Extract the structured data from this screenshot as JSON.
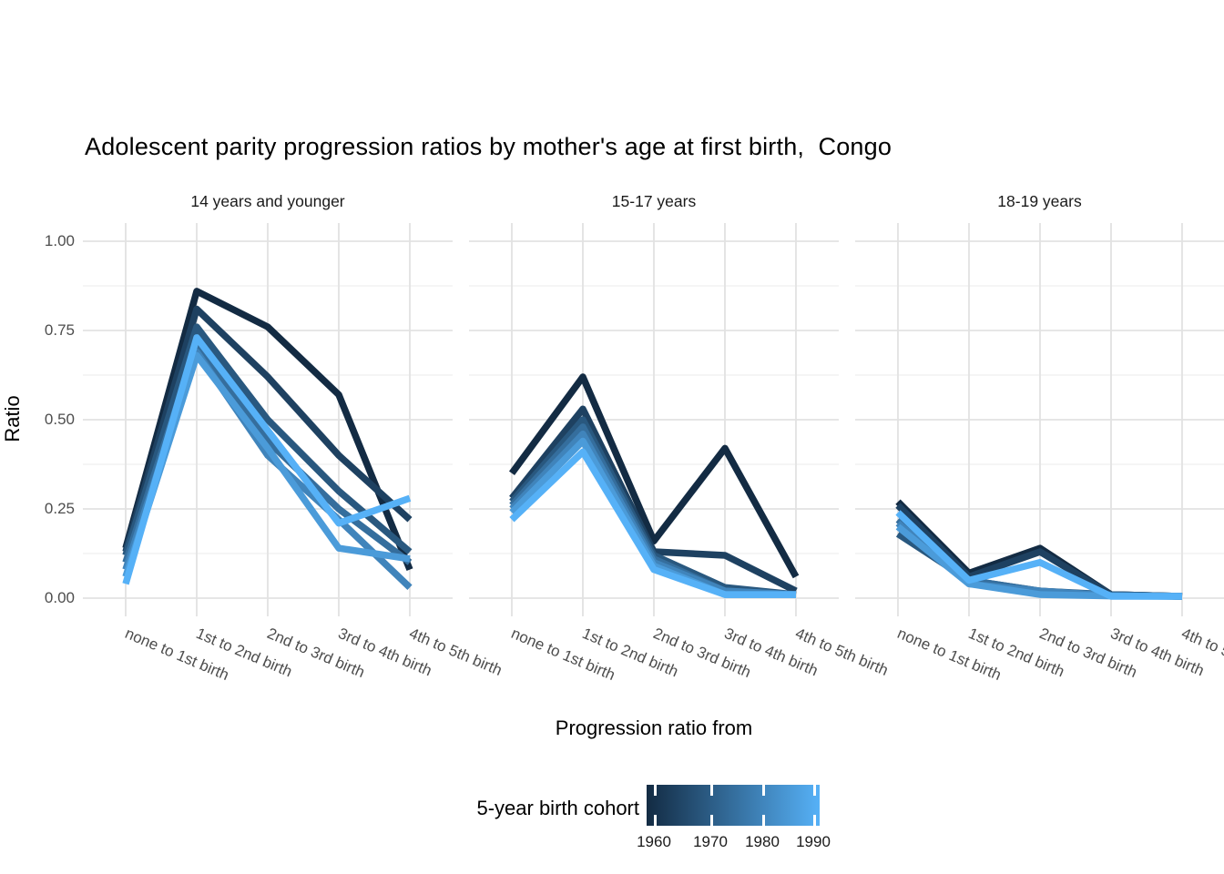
{
  "chart_data": {
    "type": "line",
    "title": "Adolescent parity progression ratios by mother's age at first birth,  Congo",
    "ylabel": "Ratio",
    "xlabel": "Progression ratio from",
    "ylim": [
      0.0,
      1.0
    ],
    "y_ticks": [
      "1.00",
      "0.75",
      "0.50",
      "0.25",
      "0.00"
    ],
    "y_tick_values": [
      1.0,
      0.75,
      0.5,
      0.25,
      0.0
    ],
    "y_minor_values": [
      0.875,
      0.625,
      0.375,
      0.125
    ],
    "grid": "light gray horizontal major+minor lines, vertical major lines at each category, white background (theme_minimal)",
    "categories": [
      "none to 1st birth",
      "1st to 2nd birth",
      "2nd to 3rd birth",
      "3rd to 4th birth",
      "4th to 5th birth"
    ],
    "legend": {
      "title": "5-year birth cohort",
      "position": "bottom",
      "style": "continuous colorbar",
      "ticks": [
        "1960",
        "1970",
        "1980",
        "1990"
      ],
      "gradient_low": "#132B43",
      "gradient_high": "#56B1F7"
    },
    "facets": [
      {
        "label": "14 years and younger",
        "series": [
          {
            "name": "1960",
            "color": "#132B43",
            "values": [
              0.14,
              0.86,
              0.76,
              0.57,
              0.08
            ]
          },
          {
            "name": "1965",
            "color": "#1E4161",
            "values": [
              0.13,
              0.81,
              0.62,
              0.4,
              0.22
            ]
          },
          {
            "name": "1970",
            "color": "#29587F",
            "values": [
              0.12,
              0.76,
              0.5,
              0.3,
              0.13
            ]
          },
          {
            "name": "1975",
            "color": "#356E9D",
            "values": [
              0.1,
              0.71,
              0.44,
              0.25,
              0.1
            ]
          },
          {
            "name": "1980",
            "color": "#4084BB",
            "values": [
              0.08,
              0.69,
              0.4,
              0.22,
              0.03
            ]
          },
          {
            "name": "1985",
            "color": "#4B9BD9",
            "values": [
              0.06,
              0.68,
              0.42,
              0.14,
              0.11
            ]
          },
          {
            "name": "1990",
            "color": "#56B1F7",
            "values": [
              0.04,
              0.73,
              0.47,
              0.21,
              0.28
            ]
          }
        ]
      },
      {
        "label": "15-17 years",
        "series": [
          {
            "name": "1960",
            "color": "#132B43",
            "values": [
              0.35,
              0.62,
              0.16,
              0.42,
              0.06
            ]
          },
          {
            "name": "1965",
            "color": "#1E4161",
            "values": [
              0.28,
              0.53,
              0.13,
              0.12,
              0.02
            ]
          },
          {
            "name": "1970",
            "color": "#29587F",
            "values": [
              0.27,
              0.5,
              0.12,
              0.03,
              0.01
            ]
          },
          {
            "name": "1975",
            "color": "#356E9D",
            "values": [
              0.26,
              0.48,
              0.11,
              0.02,
              0.01
            ]
          },
          {
            "name": "1980",
            "color": "#4084BB",
            "values": [
              0.25,
              0.46,
              0.1,
              0.02,
              0.01
            ]
          },
          {
            "name": "1985",
            "color": "#4B9BD9",
            "values": [
              0.24,
              0.44,
              0.09,
              0.01,
              0.01
            ]
          },
          {
            "name": "1990",
            "color": "#56B1F7",
            "values": [
              0.22,
              0.41,
              0.08,
              0.01,
              0.01
            ]
          }
        ]
      },
      {
        "label": "18-19 years",
        "series": [
          {
            "name": "1960",
            "color": "#132B43",
            "values": [
              0.27,
              0.07,
              0.14,
              0.01,
              0.005
            ]
          },
          {
            "name": "1965",
            "color": "#1E4161",
            "values": [
              0.26,
              0.06,
              0.13,
              0.01,
              0.005
            ]
          },
          {
            "name": "1970",
            "color": "#29587F",
            "values": [
              0.18,
              0.05,
              0.02,
              0.01,
              0.005
            ]
          },
          {
            "name": "1975",
            "color": "#356E9D",
            "values": [
              0.22,
              0.05,
              0.02,
              0.008,
              0.005
            ]
          },
          {
            "name": "1980",
            "color": "#4084BB",
            "values": [
              0.21,
              0.04,
              0.02,
              0.007,
              0.005
            ]
          },
          {
            "name": "1985",
            "color": "#4B9BD9",
            "values": [
              0.2,
              0.04,
              0.01,
              0.006,
              0.005
            ]
          },
          {
            "name": "1990",
            "color": "#56B1F7",
            "values": [
              0.24,
              0.05,
              0.1,
              0.005,
              0.005
            ]
          }
        ]
      }
    ]
  }
}
